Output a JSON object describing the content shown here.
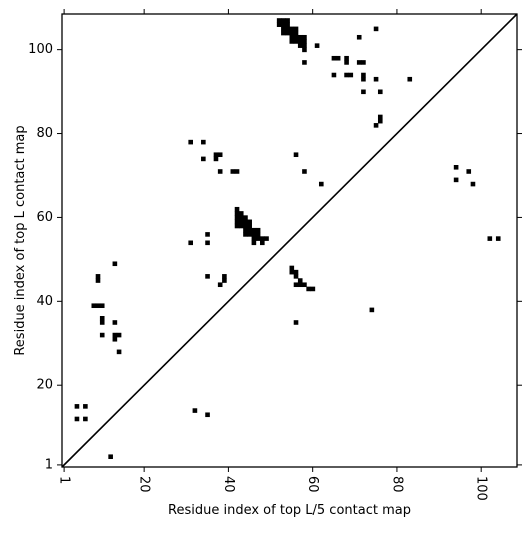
{
  "chart_data": {
    "type": "heatmap",
    "title": "",
    "xlabel": "Residue index of top L/5 contact map",
    "ylabel": "Residue index of top L contact map",
    "xlim": [
      0.5,
      108.5
    ],
    "ylim": [
      0.5,
      108.5
    ],
    "xticks": [
      1,
      20,
      40,
      60,
      80,
      100
    ],
    "yticks": [
      1,
      20,
      40,
      60,
      80,
      100
    ],
    "x_tick_labels": [
      "1",
      "20",
      "40",
      "60",
      "80",
      "100"
    ],
    "y_tick_labels": [
      "1",
      "20",
      "40",
      "60",
      "80",
      "100"
    ],
    "x_tick_rotation_deg": -90,
    "diagonal": true,
    "grid": false,
    "cell_color": "#000000",
    "background_color": "#ffffff",
    "upper_triangle_contacts": [
      [
        52,
        107
      ],
      [
        53,
        107
      ],
      [
        54,
        107
      ],
      [
        52,
        106
      ],
      [
        53,
        106
      ],
      [
        54,
        106
      ],
      [
        53,
        105
      ],
      [
        54,
        105
      ],
      [
        55,
        105
      ],
      [
        56,
        105
      ],
      [
        53,
        104
      ],
      [
        54,
        104
      ],
      [
        55,
        104
      ],
      [
        56,
        104
      ],
      [
        55,
        103
      ],
      [
        56,
        103
      ],
      [
        57,
        103
      ],
      [
        58,
        103
      ],
      [
        55,
        102
      ],
      [
        56,
        102
      ],
      [
        57,
        102
      ],
      [
        58,
        102
      ],
      [
        57,
        101
      ],
      [
        58,
        101
      ],
      [
        58,
        100
      ],
      [
        61,
        101
      ],
      [
        58,
        97
      ],
      [
        65,
        98
      ],
      [
        66,
        98
      ],
      [
        68,
        98
      ],
      [
        68,
        97
      ],
      [
        71,
        97
      ],
      [
        72,
        97
      ],
      [
        71,
        103
      ],
      [
        75,
        105
      ],
      [
        65,
        94
      ],
      [
        68,
        94
      ],
      [
        69,
        94
      ],
      [
        72,
        94
      ],
      [
        72,
        93
      ],
      [
        75,
        93
      ],
      [
        72,
        90
      ],
      [
        76,
        90
      ],
      [
        83,
        93
      ],
      [
        76,
        84
      ],
      [
        76,
        83
      ],
      [
        75,
        82
      ],
      [
        56,
        75
      ],
      [
        58,
        71
      ],
      [
        62,
        68
      ],
      [
        94,
        72
      ],
      [
        97,
        71
      ],
      [
        94,
        69
      ],
      [
        98,
        68
      ],
      [
        102,
        55
      ],
      [
        104,
        55
      ]
    ],
    "lower_triangle_contacts": [
      [
        31,
        78
      ],
      [
        34,
        78
      ],
      [
        37,
        75
      ],
      [
        38,
        75
      ],
      [
        37,
        74
      ],
      [
        34,
        74
      ],
      [
        38,
        71
      ],
      [
        41,
        71
      ],
      [
        42,
        71
      ],
      [
        42,
        62
      ],
      [
        42,
        61
      ],
      [
        43,
        61
      ],
      [
        42,
        60
      ],
      [
        43,
        60
      ],
      [
        44,
        60
      ],
      [
        42,
        59
      ],
      [
        43,
        59
      ],
      [
        44,
        59
      ],
      [
        45,
        59
      ],
      [
        42,
        58
      ],
      [
        43,
        58
      ],
      [
        44,
        58
      ],
      [
        45,
        58
      ],
      [
        44,
        57
      ],
      [
        45,
        57
      ],
      [
        46,
        57
      ],
      [
        47,
        57
      ],
      [
        44,
        56
      ],
      [
        45,
        56
      ],
      [
        46,
        56
      ],
      [
        47,
        56
      ],
      [
        46,
        55
      ],
      [
        47,
        55
      ],
      [
        48,
        55
      ],
      [
        49,
        55
      ],
      [
        46,
        54
      ],
      [
        48,
        54
      ],
      [
        31,
        54
      ],
      [
        35,
        54
      ],
      [
        35,
        56
      ],
      [
        35,
        46
      ],
      [
        39,
        46
      ],
      [
        39,
        45
      ],
      [
        38,
        44
      ],
      [
        55,
        48
      ],
      [
        55,
        47
      ],
      [
        56,
        47
      ],
      [
        56,
        46
      ],
      [
        56,
        44
      ],
      [
        57,
        45
      ],
      [
        57,
        44
      ],
      [
        58,
        44
      ],
      [
        59,
        43
      ],
      [
        60,
        43
      ],
      [
        56,
        35
      ],
      [
        74,
        38
      ],
      [
        13,
        49
      ],
      [
        9,
        46
      ],
      [
        9,
        45
      ],
      [
        8,
        39
      ],
      [
        9,
        39
      ],
      [
        10,
        39
      ],
      [
        10,
        36
      ],
      [
        10,
        35
      ],
      [
        13,
        35
      ],
      [
        10,
        32
      ],
      [
        13,
        32
      ],
      [
        14,
        32
      ],
      [
        13,
        31
      ],
      [
        14,
        28
      ],
      [
        4,
        15
      ],
      [
        6,
        15
      ],
      [
        4,
        12
      ],
      [
        6,
        12
      ],
      [
        12,
        3
      ],
      [
        32,
        14
      ],
      [
        35,
        13
      ]
    ]
  }
}
